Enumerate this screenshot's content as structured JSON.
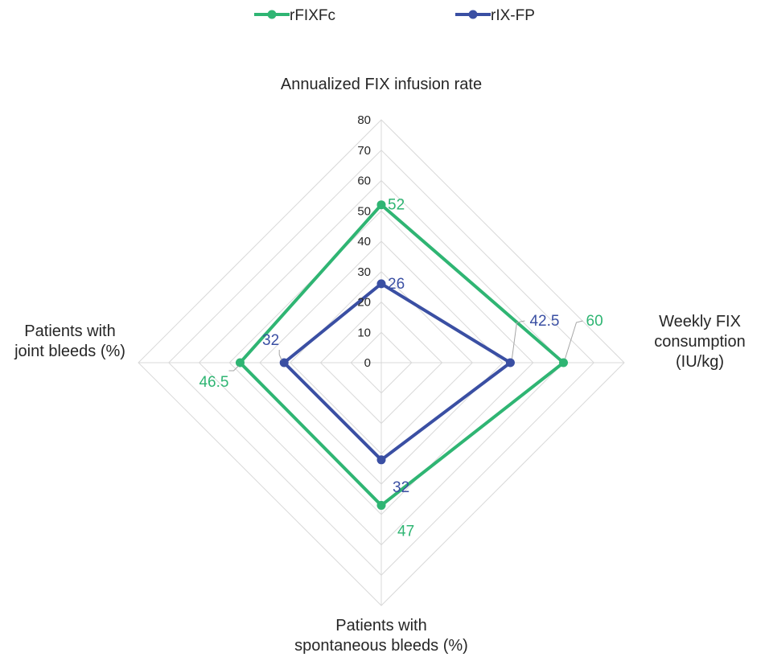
{
  "chart_data": {
    "type": "radar",
    "axes": [
      {
        "label_lines": [
          "Annualized FIX infusion rate"
        ]
      },
      {
        "label_lines": [
          "Weekly FIX",
          "consumption",
          "(IU/kg)"
        ]
      },
      {
        "label_lines": [
          "Patients with",
          "spontaneous bleeds (%)"
        ]
      },
      {
        "label_lines": [
          "Patients with",
          "joint bleeds (%)"
        ]
      }
    ],
    "ticks": [
      "0",
      "10",
      "20",
      "30",
      "40",
      "50",
      "60",
      "70",
      "80"
    ],
    "range": [
      0,
      80
    ],
    "grid": true,
    "legend_position": "top",
    "series": [
      {
        "name": "rFIXFc",
        "color": "#2fb573",
        "values": [
          52,
          60,
          47,
          46.5
        ],
        "labels": [
          "52",
          "60",
          "47",
          "46.5"
        ]
      },
      {
        "name": "rIX-FP",
        "color": "#3a4fa3",
        "values": [
          26,
          42.5,
          32,
          32
        ],
        "labels": [
          "26",
          "42.5",
          "32",
          "32"
        ]
      }
    ]
  }
}
